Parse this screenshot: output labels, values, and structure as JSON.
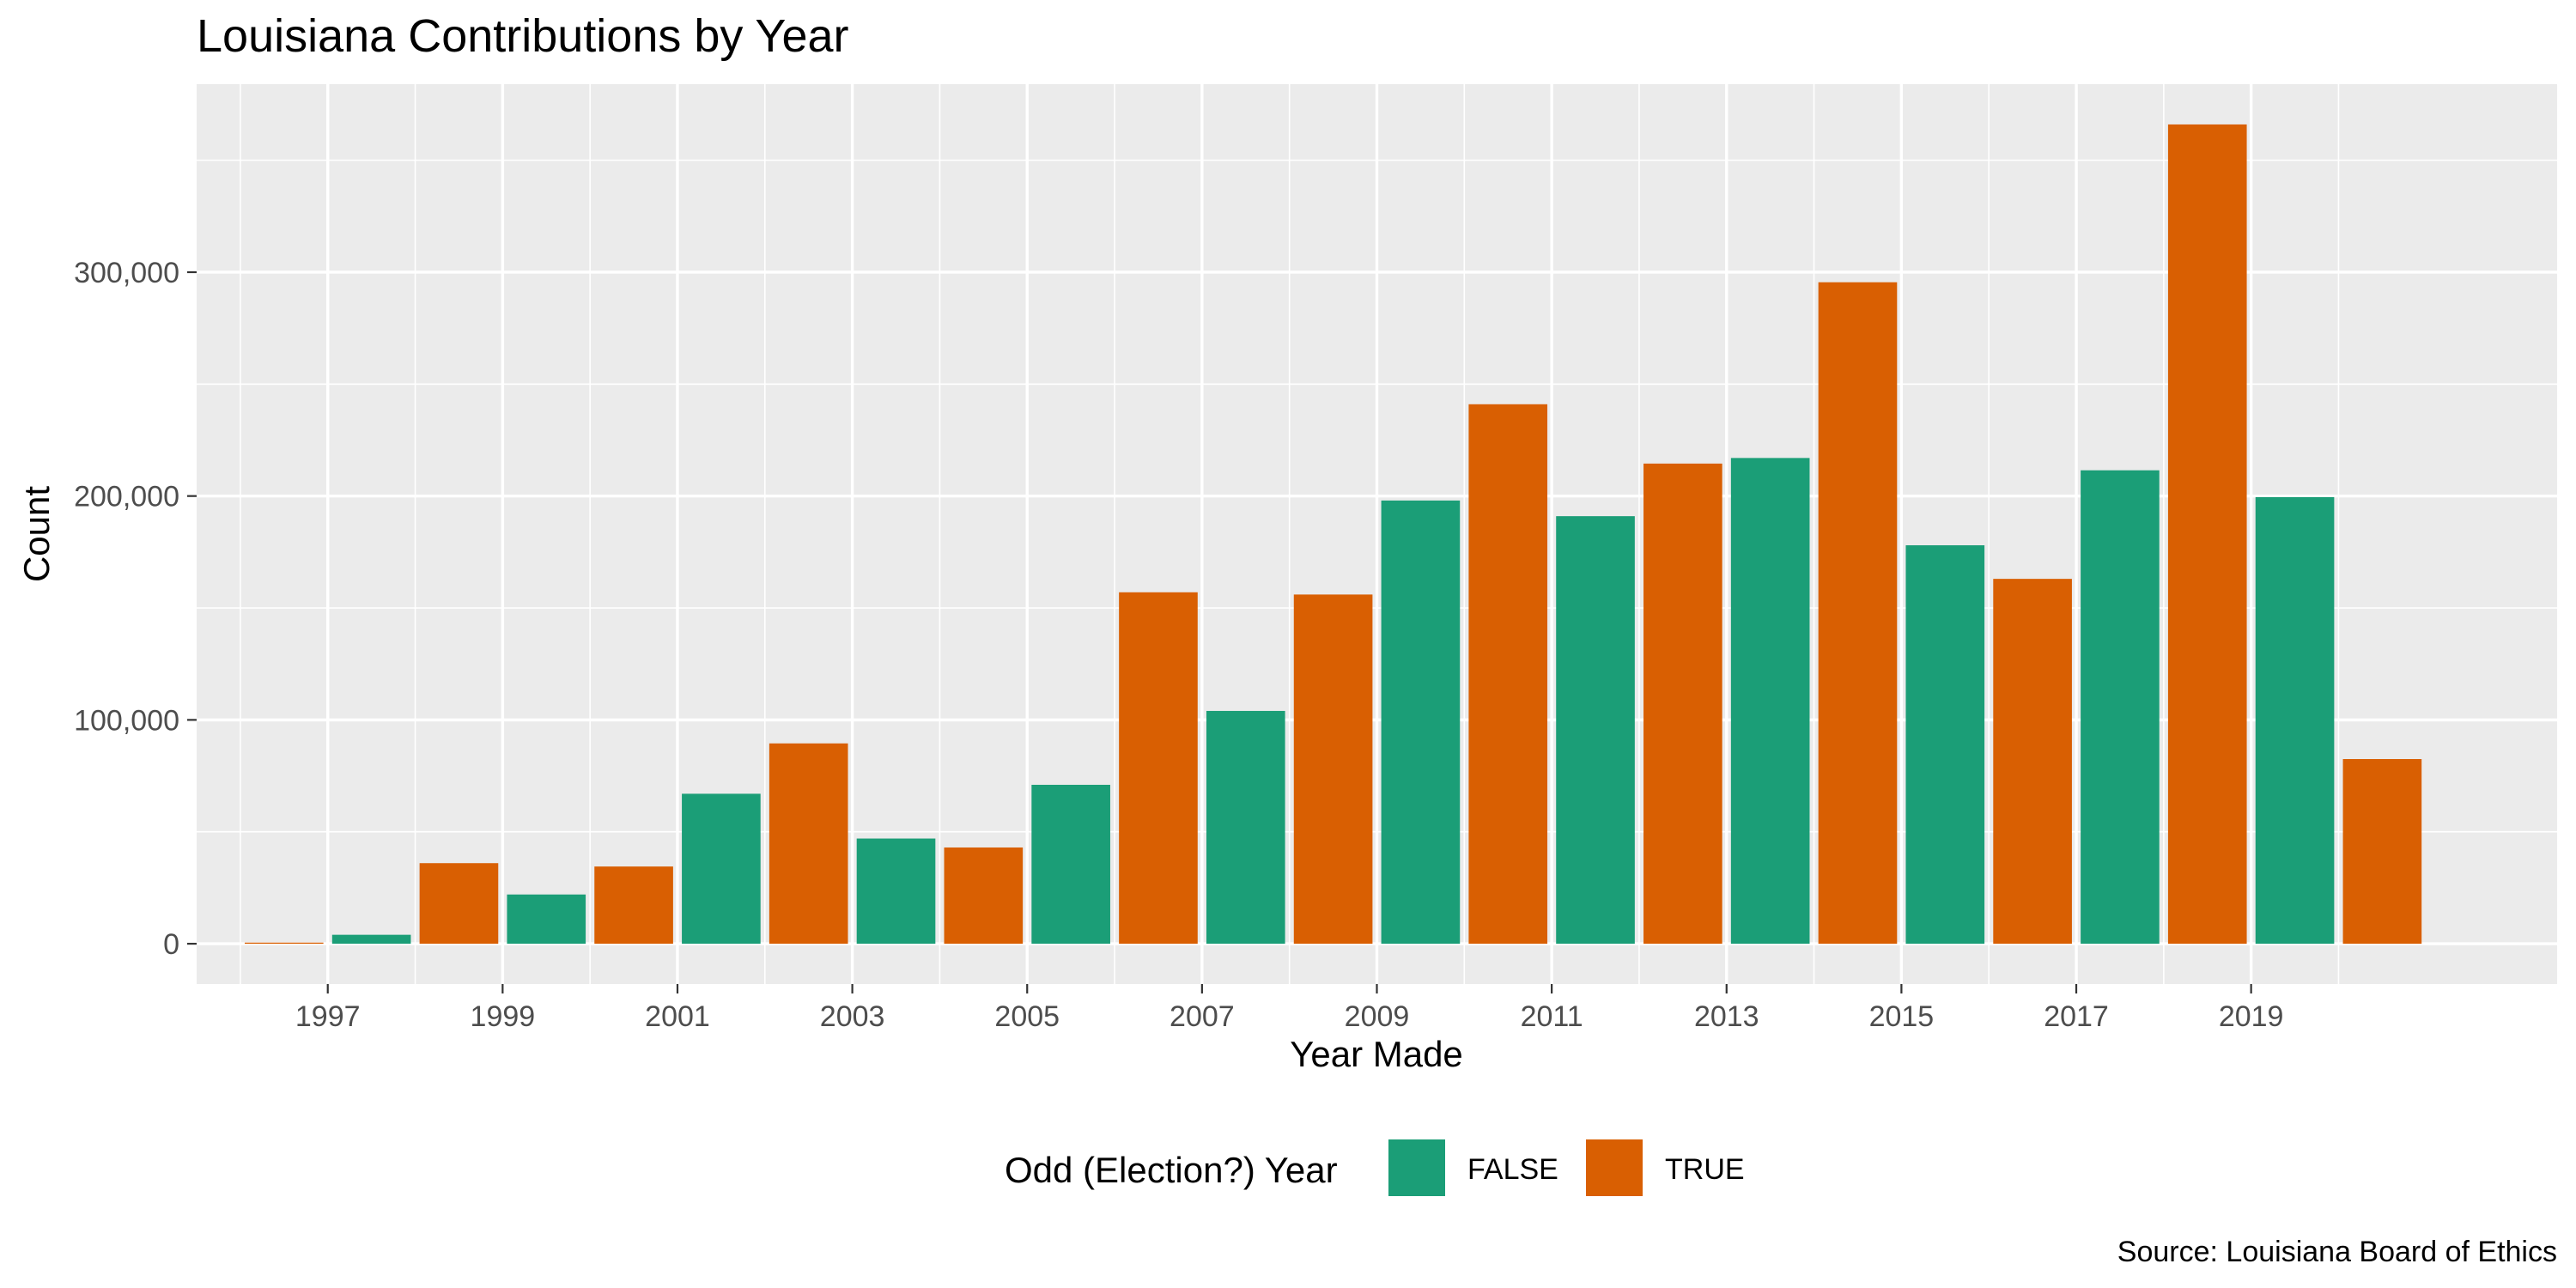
{
  "chart_data": {
    "type": "bar",
    "title": "Louisiana Contributions by Year",
    "xlabel": "Year Made",
    "ylabel": "Count",
    "caption": "Source: Louisiana Board of Ethics",
    "x": [
      1997,
      1998,
      1999,
      2000,
      2001,
      2002,
      2003,
      2004,
      2005,
      2006,
      2007,
      2008,
      2009,
      2010,
      2011,
      2012,
      2013,
      2014,
      2015,
      2016,
      2017,
      2018,
      2019,
      2020,
      2021
    ],
    "values": [
      500,
      4000,
      36000,
      22000,
      34500,
      67000,
      89500,
      47000,
      43000,
      71000,
      157000,
      104000,
      156000,
      198000,
      241000,
      191000,
      214500,
      217000,
      295500,
      178000,
      163000,
      211500,
      366000,
      199500,
      82500
    ],
    "odd": [
      true,
      false,
      true,
      false,
      true,
      false,
      true,
      false,
      true,
      false,
      true,
      false,
      true,
      false,
      true,
      false,
      true,
      false,
      true,
      false,
      true,
      false,
      true,
      false,
      true
    ],
    "x_ticks": [
      "1997",
      "1999",
      "2001",
      "2003",
      "2005",
      "2007",
      "2009",
      "2011",
      "2013",
      "2015",
      "2017",
      "2019"
    ],
    "y_ticks": [
      0,
      100000,
      200000,
      300000
    ],
    "y_tick_labels": [
      "0",
      "100,000",
      "200,000",
      "300,000"
    ],
    "ylim": [
      -18000,
      384000
    ],
    "xlim": [
      1995.5,
      2022.5
    ],
    "grid": true,
    "legend": {
      "title": "Odd (Election?) Year",
      "position": "bottom",
      "entries": [
        {
          "label": "FALSE",
          "color": "#1b9e77"
        },
        {
          "label": "TRUE",
          "color": "#d95f02"
        }
      ]
    },
    "colors": {
      "panel": "#ebebeb",
      "grid": "#ffffff"
    }
  }
}
